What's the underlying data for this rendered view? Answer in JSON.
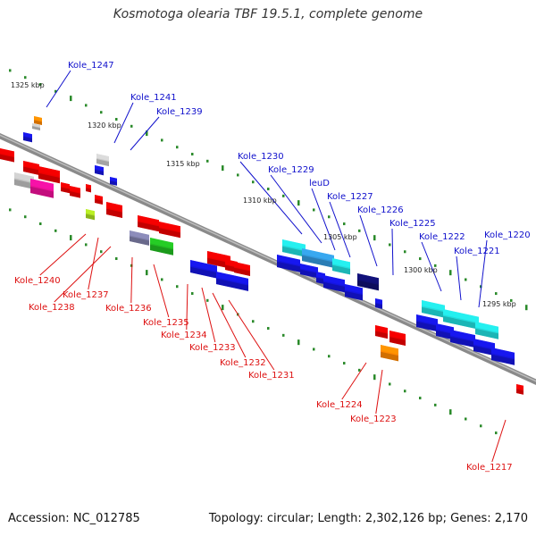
{
  "title": "Kosmotoga olearia TBF 19.5.1, complete genome",
  "accession_text": "Accession: NC_012785",
  "summary_text": "Topology: circular; Length: 2,302,126 bp; Genes: 2,170",
  "colors": {
    "backbone": "#7f7f7f",
    "forward_label": "#1010cc",
    "reverse_label": "#dd1010",
    "tick": "#2a8a2a"
  },
  "kbp_labels": [
    "1325 kbp",
    "1320 kbp",
    "1315 kbp",
    "1310 kbp",
    "1305 kbp",
    "1300 kbp",
    "1295 kbp"
  ],
  "forward_genes": [
    "Kole_1247",
    "Kole_1241",
    "Kole_1239",
    "Kole_1230",
    "Kole_1229",
    "leuD",
    "Kole_1227",
    "Kole_1226",
    "Kole_1225",
    "Kole_1222",
    "Kole_1221",
    "Kole_1220"
  ],
  "reverse_genes": [
    "Kole_1240",
    "Kole_1237",
    "Kole_1238",
    "Kole_1236",
    "Kole_1235",
    "Kole_1234",
    "Kole_1233",
    "Kole_1232",
    "Kole_1231",
    "Kole_1224",
    "Kole_1223",
    "Kole_1217"
  ]
}
